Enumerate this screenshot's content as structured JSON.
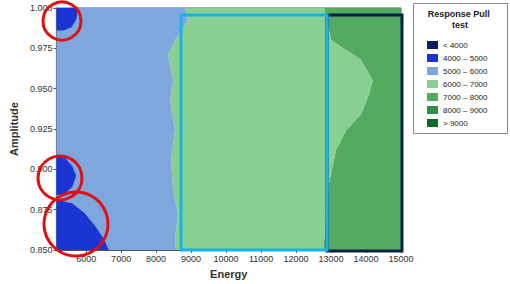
{
  "chart_data": {
    "type": "contour",
    "x_label": "Energy",
    "y_label": "Amplitude",
    "legend_title": "Response Pull test",
    "xlim": [
      5150,
      15000
    ],
    "xticks": [
      6000,
      7000,
      8000,
      9000,
      10000,
      11000,
      12000,
      13000,
      14000,
      15000
    ],
    "ylim": [
      0.85,
      1.0
    ],
    "yticks": [
      {
        "value": 0.85,
        "label": "0.850"
      },
      {
        "value": 0.875,
        "label": "0.875"
      },
      {
        "value": 0.9,
        "label": "0.900"
      },
      {
        "value": 0.925,
        "label": "0.925"
      },
      {
        "value": 0.95,
        "label": "0.950"
      },
      {
        "value": 0.975,
        "label": "0.975"
      },
      {
        "value": 1.0,
        "label": "1.000"
      }
    ],
    "legend": "right",
    "series": [
      {
        "name": "< 4000",
        "color": "#0d1f5c",
        "regions": []
      },
      {
        "name": "4000 – 5000",
        "color": "#1a35d4",
        "regions": [
          [
            [
              5150,
              1.0
            ],
            [
              5770,
              1.0
            ],
            [
              5720,
              0.993
            ],
            [
              5580,
              0.988
            ],
            [
              5350,
              0.986
            ],
            [
              5150,
              0.986
            ]
          ],
          [
            [
              5150,
              0.909
            ],
            [
              5400,
              0.907
            ],
            [
              5600,
              0.902
            ],
            [
              5715,
              0.896
            ],
            [
              5600,
              0.889
            ],
            [
              5400,
              0.885
            ],
            [
              5150,
              0.884
            ]
          ],
          [
            [
              5150,
              0.881
            ],
            [
              5600,
              0.879
            ],
            [
              5950,
              0.873
            ],
            [
              6250,
              0.865
            ],
            [
              6500,
              0.857
            ],
            [
              6650,
              0.85
            ],
            [
              5150,
              0.85
            ]
          ]
        ]
      },
      {
        "name": "5000 – 6000",
        "color": "#7fa6dd",
        "regions": [
          [
            [
              5150,
              0.85
            ],
            [
              8568,
              0.85
            ],
            [
              8540,
              0.856
            ],
            [
              8625,
              0.872
            ],
            [
              8483,
              0.887
            ],
            [
              8427,
              0.906
            ],
            [
              8540,
              0.924
            ],
            [
              8398,
              0.943
            ],
            [
              8483,
              0.955
            ],
            [
              8342,
              0.971
            ],
            [
              8540,
              0.98
            ],
            [
              8907,
              0.9926
            ],
            [
              8822,
              1.0
            ],
            [
              5150,
              1.0
            ]
          ]
        ]
      },
      {
        "name": "6000 – 7000",
        "color": "#88cf92",
        "regions": [
          [
            [
              8822,
              1.0
            ],
            [
              8907,
              0.9926
            ],
            [
              8540,
              0.98
            ],
            [
              8342,
              0.971
            ],
            [
              8483,
              0.955
            ],
            [
              8398,
              0.943
            ],
            [
              8540,
              0.924
            ],
            [
              8427,
              0.906
            ],
            [
              8483,
              0.887
            ],
            [
              8625,
              0.872
            ],
            [
              8540,
              0.856
            ],
            [
              8568,
              0.85
            ],
            [
              12777,
              0.85
            ],
            [
              12805,
              0.856
            ],
            [
              12862,
              0.877
            ],
            [
              12947,
              0.892
            ],
            [
              13144,
              0.912
            ],
            [
              13427,
              0.924
            ],
            [
              13850,
              0.934
            ],
            [
              14080,
              0.946
            ],
            [
              14190,
              0.955
            ],
            [
              13850,
              0.968
            ],
            [
              13003,
              0.98
            ],
            [
              12805,
              1.0
            ]
          ]
        ]
      },
      {
        "name": "7000 – 8000",
        "color": "#52ab5e",
        "regions": [
          [
            [
              12805,
              1.0
            ],
            [
              13003,
              0.98
            ],
            [
              13850,
              0.968
            ],
            [
              14190,
              0.955
            ],
            [
              14080,
              0.946
            ],
            [
              13850,
              0.934
            ],
            [
              13427,
              0.924
            ],
            [
              13144,
              0.912
            ],
            [
              12947,
              0.892
            ],
            [
              12862,
              0.877
            ],
            [
              12805,
              0.856
            ],
            [
              12777,
              0.85
            ],
            [
              15000,
              0.85
            ],
            [
              15000,
              1.0
            ]
          ]
        ]
      },
      {
        "name": "8000 – 9000",
        "color": "#2e8f42",
        "regions": []
      },
      {
        "name": "> 9000",
        "color": "#0e6b24",
        "regions": []
      }
    ]
  }
}
